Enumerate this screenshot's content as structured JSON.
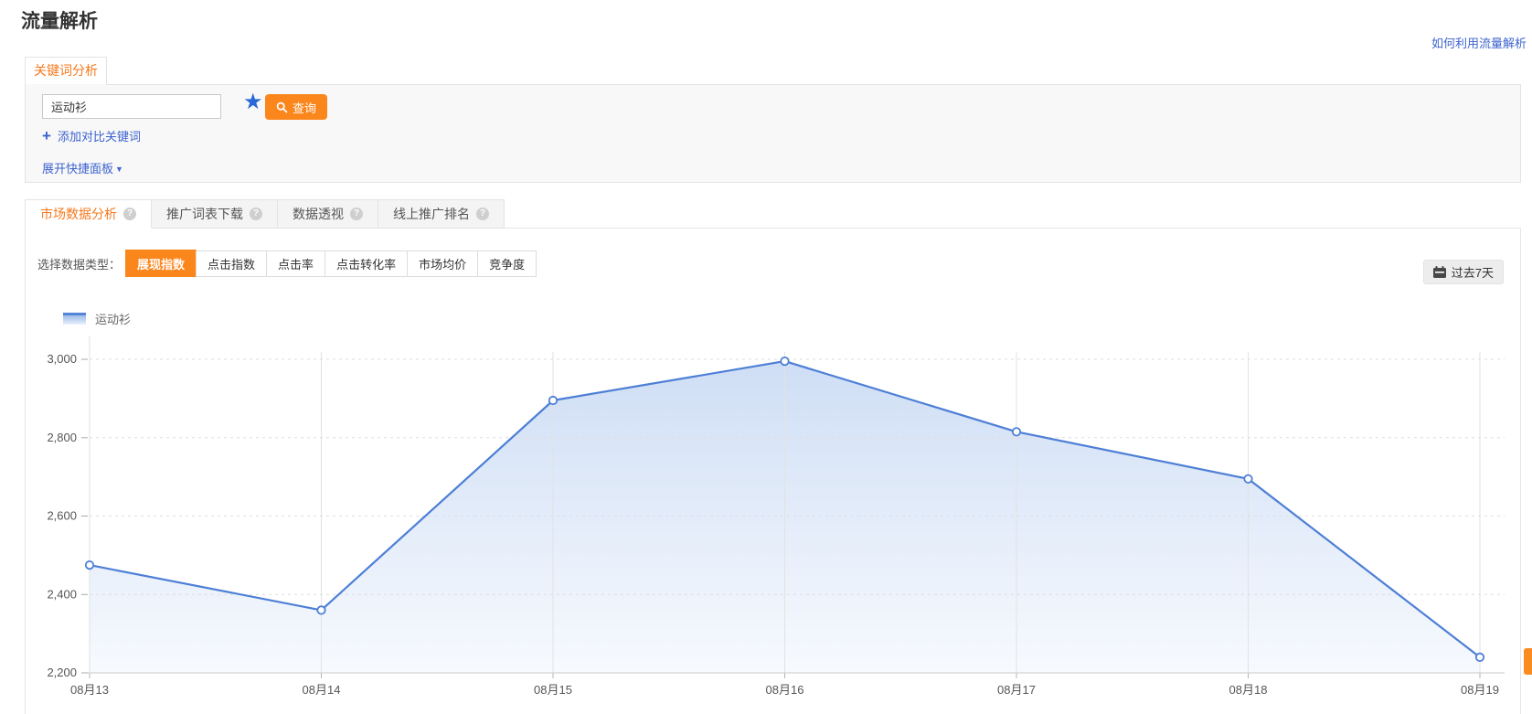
{
  "page": {
    "title": "流量解析",
    "help_link": "如何利用流量解析"
  },
  "keyword_panel": {
    "tab_label": "关键词分析",
    "keyword_value": "运动衫",
    "search_button": "查询",
    "add_compare": "添加对比关键词",
    "expand_panel": "展开快捷面板"
  },
  "tabs": [
    {
      "label": "市场数据分析",
      "active": true
    },
    {
      "label": "推广词表下载",
      "active": false
    },
    {
      "label": "数据透视",
      "active": false
    },
    {
      "label": "线上推广排名",
      "active": false
    }
  ],
  "selector": {
    "label": "选择数据类型：",
    "options": [
      "展现指数",
      "点击指数",
      "点击率",
      "点击转化率",
      "市场均价",
      "竞争度"
    ],
    "active": "展现指数"
  },
  "date_range": {
    "label": "过去7天"
  },
  "legend": [
    {
      "name": "运动衫",
      "color": "#4d7fd6"
    }
  ],
  "chart_data": {
    "type": "line",
    "title": "",
    "xlabel": "",
    "ylabel": "",
    "categories": [
      "08月13",
      "08月14",
      "08月15",
      "08月16",
      "08月17",
      "08月18",
      "08月19"
    ],
    "series": [
      {
        "name": "运动衫",
        "values": [
          2475,
          2360,
          2895,
          2995,
          2815,
          2695,
          2240
        ]
      }
    ],
    "ylim": [
      2200,
      3000
    ],
    "yticks": [
      2200,
      2400,
      2600,
      2800,
      3000
    ],
    "grid": true,
    "area": true,
    "legend_position": "top-left",
    "line_color": "#4d7fd6",
    "point_fill": "#ffffff",
    "area_gradient_top": "#cfdef5",
    "area_gradient_bottom": "#f7fafe"
  },
  "colors": {
    "accent_orange": "#fb861c",
    "tab_orange": "#f5791d",
    "link_blue": "#3d63cf",
    "star_blue": "#2a68d9"
  }
}
